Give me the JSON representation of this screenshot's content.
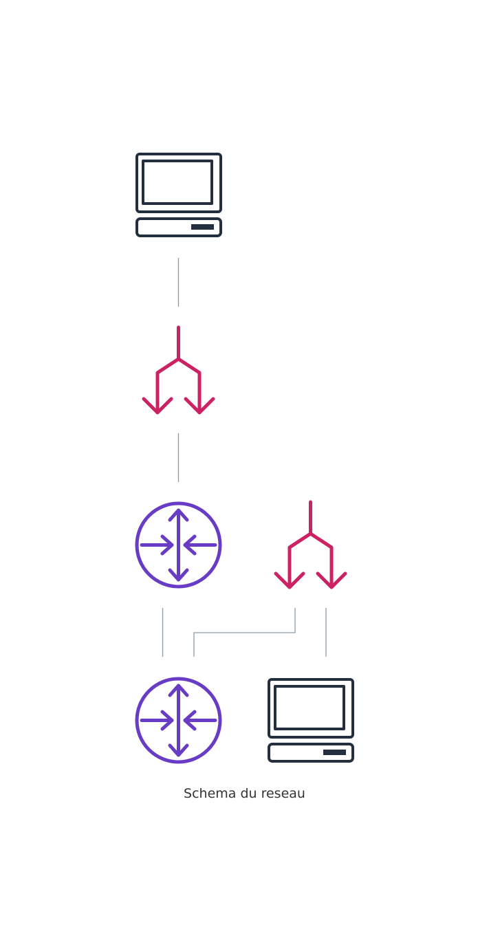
{
  "diagram": {
    "caption": "Schema du reseau",
    "colors": {
      "client": "#232f3e",
      "split": "#cc2264",
      "router": "#693cc5",
      "connector": "#8a9aa7",
      "caption": "#333333",
      "background": "#ffffff"
    },
    "nodes": [
      {
        "id": "client-top",
        "icon": "laptop-client-icon"
      },
      {
        "id": "split-top",
        "icon": "split-arrows-icon"
      },
      {
        "id": "router-middle",
        "icon": "router-icon"
      },
      {
        "id": "split-right",
        "icon": "split-arrows-icon"
      },
      {
        "id": "router-bottom",
        "icon": "router-icon"
      },
      {
        "id": "client-bottom",
        "icon": "laptop-client-icon"
      }
    ],
    "edges": [
      {
        "from": "client-top",
        "to": "split-top"
      },
      {
        "from": "split-top",
        "to": "router-middle"
      },
      {
        "from": "router-middle",
        "to": "router-bottom"
      },
      {
        "from": "split-right",
        "to": "router-bottom"
      },
      {
        "from": "split-right",
        "to": "client-bottom"
      }
    ]
  }
}
